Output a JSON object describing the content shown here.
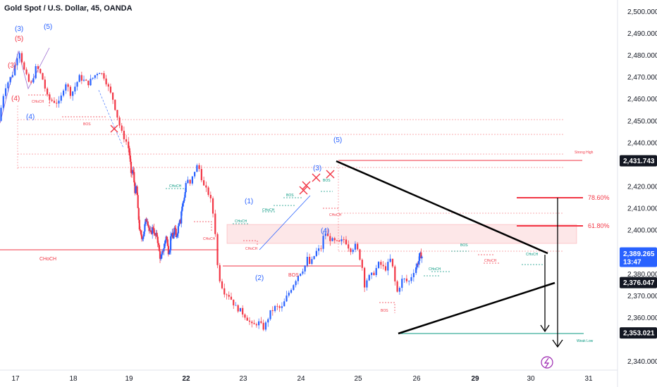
{
  "header": {
    "title": "Gold Spot / U.S. Dollar, 45, OANDA"
  },
  "chart_data": {
    "type": "candlestick",
    "title": "Gold Spot / U.S. Dollar, 45, OANDA",
    "ylim": [
      2336,
      2504
    ],
    "y_ticks": [
      {
        "v": 2500,
        "label": "2,500.000"
      },
      {
        "v": 2490,
        "label": "2,490.000"
      },
      {
        "v": 2480,
        "label": "2,480.000"
      },
      {
        "v": 2470,
        "label": "2,470.000"
      },
      {
        "v": 2460,
        "label": "2,460.000"
      },
      {
        "v": 2450,
        "label": "2,450.000"
      },
      {
        "v": 2440,
        "label": "2,440.000"
      },
      {
        "v": 2420,
        "label": "2,420.000"
      },
      {
        "v": 2410,
        "label": "2,410.000"
      },
      {
        "v": 2400,
        "label": "2,400.000"
      },
      {
        "v": 2380,
        "label": "2,380.000"
      },
      {
        "v": 2370,
        "label": "2,370.000"
      },
      {
        "v": 2360,
        "label": "2,360.000"
      },
      {
        "v": 2340,
        "label": "2,340.000"
      }
    ],
    "x_ticks": [
      {
        "t": 17,
        "label": "17",
        "bold": false
      },
      {
        "t": 18,
        "label": "18",
        "bold": false
      },
      {
        "t": 19,
        "label": "19",
        "bold": false
      },
      {
        "t": 22,
        "label": "22",
        "bold": true
      },
      {
        "t": 23,
        "label": "23",
        "bold": false
      },
      {
        "t": 24,
        "label": "24",
        "bold": false
      },
      {
        "t": 25,
        "label": "25",
        "bold": false
      },
      {
        "t": 26,
        "label": "26",
        "bold": false
      },
      {
        "t": 29,
        "label": "29",
        "bold": true
      },
      {
        "t": 30,
        "label": "30",
        "bold": false
      },
      {
        "t": 31,
        "label": "31",
        "bold": false
      }
    ],
    "price_tags": [
      {
        "v": 2431.743,
        "label": "2,431.743",
        "color": "#131722"
      },
      {
        "v": 2376.047,
        "label": "2,376.047",
        "color": "#131722"
      },
      {
        "v": 2353.021,
        "label": "2,353.021",
        "color": "#131722"
      }
    ],
    "last_price": {
      "v": 2389.265,
      "label": "2,389.265",
      "countdown": "13:47",
      "color": "#2962ff"
    },
    "series_path": [
      [
        16.75,
        2450
      ],
      [
        16.85,
        2465
      ],
      [
        17.0,
        2472
      ],
      [
        17.1,
        2483
      ],
      [
        17.2,
        2472
      ],
      [
        17.3,
        2466
      ],
      [
        17.4,
        2475
      ],
      [
        17.5,
        2470
      ],
      [
        17.6,
        2460
      ],
      [
        17.8,
        2458
      ],
      [
        17.9,
        2468
      ],
      [
        18.0,
        2462
      ],
      [
        18.15,
        2470
      ],
      [
        18.3,
        2467
      ],
      [
        18.5,
        2473
      ],
      [
        18.6,
        2470
      ],
      [
        18.7,
        2463
      ],
      [
        18.75,
        2460
      ],
      [
        18.8,
        2455
      ],
      [
        18.9,
        2445
      ],
      [
        19.0,
        2440
      ],
      [
        19.1,
        2432
      ],
      [
        19.15,
        2425
      ],
      [
        19.25,
        2428
      ],
      [
        19.35,
        2418
      ],
      [
        19.45,
        2420
      ],
      [
        19.5,
        2410
      ],
      [
        19.6,
        2400
      ],
      [
        19.7,
        2396
      ],
      [
        19.8,
        2398
      ],
      [
        19.9,
        2404
      ],
      [
        20.0,
        2405
      ],
      [
        20.1,
        2400
      ],
      [
        20.2,
        2398
      ],
      [
        20.3,
        2402
      ],
      [
        20.4,
        2397
      ],
      [
        20.5,
        2398
      ],
      [
        20.6,
        2392
      ],
      [
        20.7,
        2386
      ],
      [
        20.8,
        2390
      ],
      [
        20.9,
        2393
      ],
      [
        21.0,
        2398
      ],
      [
        21.05,
        2394
      ],
      [
        21.1,
        2390
      ],
      [
        21.2,
        2392
      ],
      [
        21.25,
        2400
      ],
      [
        21.35,
        2396
      ],
      [
        21.45,
        2402
      ],
      [
        21.5,
        2396
      ],
      [
        21.6,
        2400
      ],
      [
        21.7,
        2406
      ],
      [
        21.75,
        2404
      ],
      [
        21.8,
        2410
      ],
      [
        21.9,
        2413
      ],
      [
        22.0,
        2418
      ],
      [
        22.05,
        2424
      ],
      [
        22.1,
        2420
      ],
      [
        22.2,
        2428
      ],
      [
        22.25,
        2430
      ],
      [
        22.3,
        2425
      ],
      [
        22.35,
        2420
      ],
      [
        22.45,
        2416
      ],
      [
        22.5,
        2410
      ],
      [
        22.55,
        2399
      ],
      [
        22.6,
        2380
      ],
      [
        22.7,
        2372
      ],
      [
        22.8,
        2370
      ],
      [
        22.9,
        2365
      ],
      [
        23.0,
        2363
      ],
      [
        23.1,
        2360
      ],
      [
        23.2,
        2356
      ],
      [
        23.3,
        2358
      ],
      [
        23.4,
        2355
      ],
      [
        23.5,
        2362
      ],
      [
        23.6,
        2365
      ],
      [
        23.7,
        2364
      ],
      [
        23.8,
        2370
      ],
      [
        23.9,
        2375
      ],
      [
        24.0,
        2380
      ],
      [
        24.1,
        2383
      ],
      [
        24.15,
        2387
      ],
      [
        24.2,
        2384
      ],
      [
        24.3,
        2390
      ],
      [
        24.4,
        2392
      ],
      [
        24.45,
        2400
      ],
      [
        24.5,
        2397
      ],
      [
        24.6,
        2395
      ],
      [
        24.7,
        2394
      ],
      [
        24.8,
        2396
      ],
      [
        24.9,
        2391
      ],
      [
        25.0,
        2393
      ],
      [
        25.1,
        2385
      ],
      [
        25.15,
        2375
      ],
      [
        25.2,
        2378
      ],
      [
        25.3,
        2380
      ],
      [
        25.4,
        2385
      ],
      [
        25.5,
        2382
      ],
      [
        25.6,
        2387
      ],
      [
        25.65,
        2380
      ],
      [
        25.7,
        2371
      ],
      [
        25.8,
        2378
      ],
      [
        25.9,
        2376
      ],
      [
        26.0,
        2382
      ],
      [
        26.05,
        2384
      ],
      [
        26.1,
        2385
      ],
      [
        26.15,
        2386
      ],
      [
        26.2,
        2389
      ],
      [
        26.3,
        2388
      ]
    ],
    "annotations": {
      "choch": "CHoCH",
      "bos": "BOS",
      "strong_high": "Strong High",
      "weak_low": "Weak Low",
      "fib_61": "61.80%",
      "fib_78": "78.60%",
      "waves": [
        "(3)",
        "(5)",
        "(5)",
        "(3)",
        "(4)",
        "(4)",
        "(1)",
        "(2)",
        "(3)",
        "(5)",
        "(4)"
      ]
    },
    "colors": {
      "up": "#2962ff",
      "down": "#f23645",
      "green": "#089981",
      "text": "#131722"
    }
  }
}
